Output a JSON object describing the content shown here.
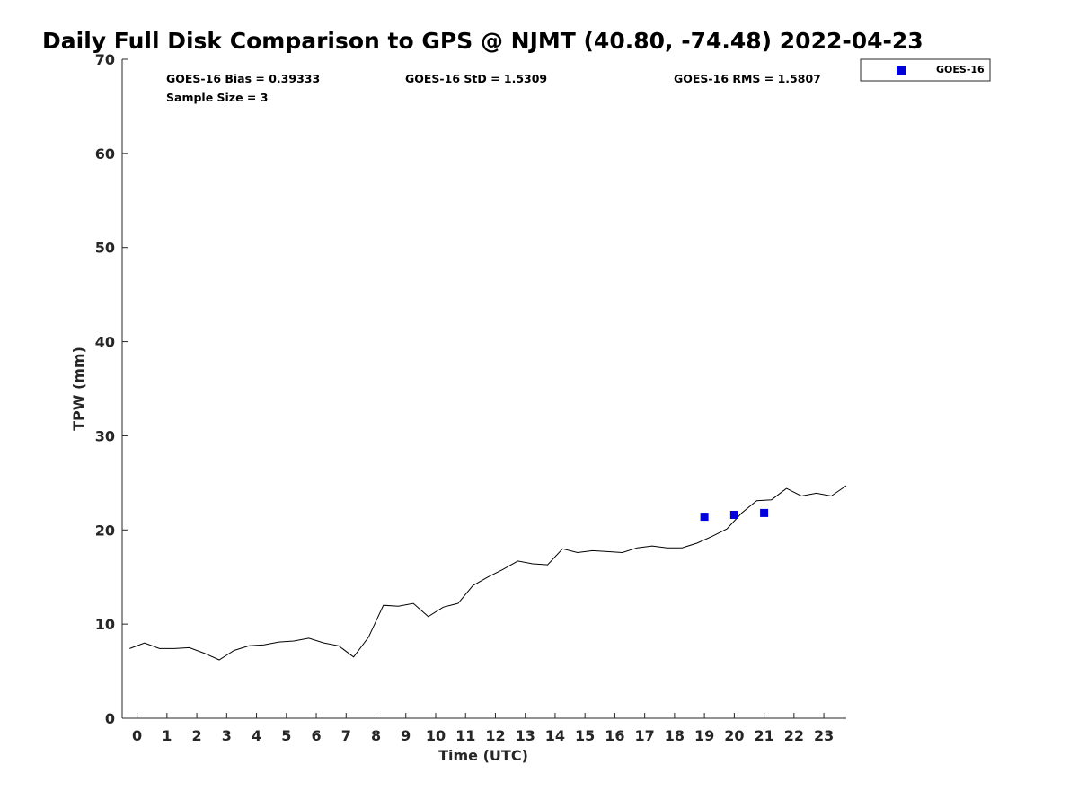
{
  "chart_data": {
    "type": "line",
    "title": "Daily Full Disk Comparison to GPS @ NJMT (40.80, -74.48) 2022-04-23",
    "xlabel": "Time (UTC)",
    "ylabel": "TPW (mm)",
    "xlim": [
      -0.5,
      23.75
    ],
    "ylim": [
      0,
      70
    ],
    "x_ticks": [
      0,
      1,
      2,
      3,
      4,
      5,
      6,
      7,
      8,
      9,
      10,
      11,
      12,
      13,
      14,
      15,
      16,
      17,
      18,
      19,
      20,
      21,
      22,
      23
    ],
    "y_ticks": [
      0,
      10,
      20,
      30,
      40,
      50,
      60,
      70
    ],
    "stats": {
      "bias": "GOES-16 Bias = 0.39333",
      "std": "GOES-16 StD = 1.5309",
      "rms": "GOES-16 RMS = 1.5807",
      "sample": "Sample Size = 3"
    },
    "legend": {
      "placement": "top-right, outside plot",
      "entries": [
        "GOES-16"
      ]
    },
    "series": [
      {
        "kind": "line",
        "color": "#000000",
        "x": [
          -0.25,
          0.25,
          0.75,
          1.25,
          1.75,
          2.25,
          2.75,
          3.25,
          3.75,
          4.25,
          4.75,
          5.25,
          5.75,
          6.25,
          6.75,
          7.25,
          7.75,
          8.25,
          8.75,
          9.25,
          9.75,
          10.25,
          10.75,
          11.25,
          11.75,
          12.25,
          12.75,
          13.25,
          13.75,
          14.25,
          14.75,
          15.25,
          15.75,
          16.25,
          16.75,
          17.25,
          17.75,
          18.25,
          18.75,
          19.25,
          19.75,
          20.25,
          20.75,
          21.25,
          21.75,
          22.25,
          22.75,
          23.25,
          23.75
        ],
        "y": [
          7.4,
          8.0,
          7.4,
          7.4,
          7.5,
          6.9,
          6.2,
          7.2,
          7.7,
          7.8,
          8.1,
          8.2,
          8.5,
          8.0,
          7.7,
          6.5,
          8.6,
          12.0,
          11.9,
          12.2,
          10.8,
          11.8,
          12.2,
          14.1,
          15.0,
          15.8,
          16.7,
          16.4,
          16.3,
          18.0,
          17.6,
          17.8,
          17.7,
          17.6,
          18.1,
          18.3,
          18.1,
          18.1,
          18.6,
          19.3,
          20.1,
          21.8,
          23.1,
          23.2,
          24.4,
          23.6,
          23.9,
          23.6,
          24.7
        ]
      },
      {
        "kind": "scatter",
        "name": "GOES-16",
        "color": "#0000dd",
        "marker": "square",
        "x": [
          19.0,
          20.0,
          21.0
        ],
        "y": [
          21.4,
          21.6,
          21.8
        ]
      }
    ]
  }
}
